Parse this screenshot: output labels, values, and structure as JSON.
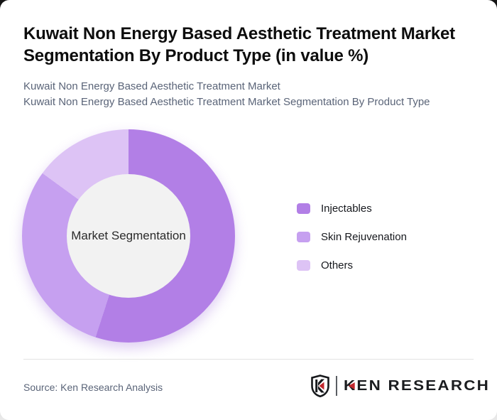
{
  "header": {
    "title": "Kuwait Non Energy Based Aesthetic Treatment Market Segmentation By Product Type (in value %)",
    "subtitle_line1": "Kuwait Non Energy Based Aesthetic Treatment Market",
    "subtitle_line2": "Kuwait Non Energy Based Aesthetic Treatment Market Segmentation By Product Type"
  },
  "chart_data": {
    "type": "pie",
    "variant": "donut",
    "title": "Kuwait Non Energy Based Aesthetic Treatment Market Segmentation By Product Type (in value %)",
    "center_label": "Market Segmentation",
    "unit": "value %",
    "categories": [
      "Injectables",
      "Skin Rejuvenation",
      "Others"
    ],
    "values": [
      55,
      30,
      15
    ],
    "colors": [
      "#b27fe6",
      "#c6a0f0",
      "#ddc3f5"
    ],
    "start_angle_deg": 0,
    "direction": "clockwise",
    "legend_position": "right",
    "hole_color": "#f2f2f2"
  },
  "legend": {
    "items": [
      {
        "label": "Injectables",
        "color": "#b27fe6"
      },
      {
        "label": "Skin Rejuvenation",
        "color": "#c6a0f0"
      },
      {
        "label": "Others",
        "color": "#ddc3f5"
      }
    ]
  },
  "footer": {
    "source": "Source: Ken Research Analysis",
    "logo": {
      "brand": "KEN RESEARCH",
      "mark_letter": "K",
      "accent_color": "#c2272d",
      "text_color": "#1b1d20"
    }
  },
  "colors": {
    "title": "#0d0d0d",
    "subtitle": "#5a6478",
    "divider": "#e3e3e3",
    "card_background": "#ffffff"
  }
}
